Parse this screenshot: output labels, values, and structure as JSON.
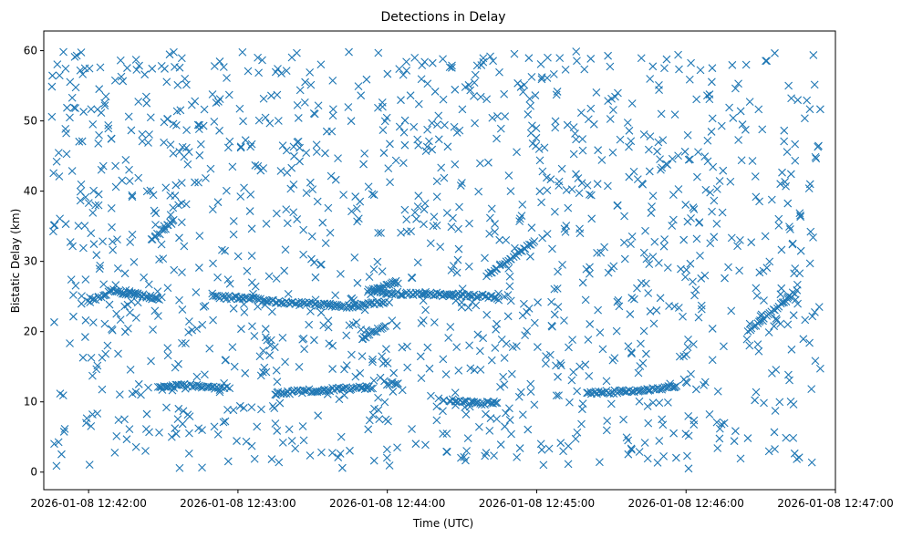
{
  "chart_data": {
    "type": "scatter",
    "title": "Detections in Delay",
    "xlabel": "Time (UTC)",
    "ylabel": "Bistatic Delay (km)",
    "xlim": [
      "2026-01-08 12:41:42",
      "2026-01-08 12:47:00"
    ],
    "ylim": [
      -2.5,
      62.8
    ],
    "xticks": [
      "2026-01-08 12:42:00",
      "2026-01-08 12:43:00",
      "2026-01-08 12:44:00",
      "2026-01-08 12:45:00",
      "2026-01-08 12:46:00",
      "2026-01-08 12:47:00"
    ],
    "yticks": [
      0,
      10,
      20,
      30,
      40,
      50,
      60
    ],
    "grid": false,
    "marker": "x",
    "color": "#1f77b4",
    "time_range": [
      "2026-01-08 12:41:45",
      "2026-01-08 12:46:54"
    ],
    "delay_range": [
      0.5,
      59.9
    ],
    "tracks": [
      {
        "points": [
          [
            "2026-01-08 12:42:00",
            24.3
          ],
          [
            "2026-01-08 12:42:10",
            25.8
          ],
          [
            "2026-01-08 12:42:20",
            25.2
          ],
          [
            "2026-01-08 12:42:30",
            24.6
          ]
        ]
      },
      {
        "points": [
          [
            "2026-01-08 12:42:50",
            25.0
          ],
          [
            "2026-01-08 12:43:00",
            24.8
          ],
          [
            "2026-01-08 12:43:10",
            24.5
          ],
          [
            "2026-01-08 12:43:20",
            24.1
          ],
          [
            "2026-01-08 12:43:30",
            23.9
          ],
          [
            "2026-01-08 12:43:45",
            23.6
          ],
          [
            "2026-01-08 12:44:00",
            24.2
          ]
        ]
      },
      {
        "points": [
          [
            "2026-01-08 12:43:55",
            25.6
          ],
          [
            "2026-01-08 12:44:10",
            25.4
          ],
          [
            "2026-01-08 12:44:30",
            25.2
          ],
          [
            "2026-01-08 12:44:45",
            24.9
          ]
        ]
      },
      {
        "points": [
          [
            "2026-01-08 12:43:52",
            25.9
          ],
          [
            "2026-01-08 12:43:58",
            26.4
          ],
          [
            "2026-01-08 12:44:05",
            27.1
          ]
        ]
      },
      {
        "points": [
          [
            "2026-01-08 12:42:28",
            12.1
          ],
          [
            "2026-01-08 12:42:40",
            12.3
          ],
          [
            "2026-01-08 12:42:50",
            12.1
          ],
          [
            "2026-01-08 12:42:55",
            11.8
          ]
        ]
      },
      {
        "points": [
          [
            "2026-01-08 12:43:15",
            11.2
          ],
          [
            "2026-01-08 12:43:30",
            11.6
          ],
          [
            "2026-01-08 12:43:45",
            11.9
          ],
          [
            "2026-01-08 12:43:55",
            12.1
          ]
        ]
      },
      {
        "points": [
          [
            "2026-01-08 12:44:00",
            12.4
          ],
          [
            "2026-01-08 12:44:05",
            12.8
          ]
        ]
      },
      {
        "points": [
          [
            "2026-01-08 12:44:25",
            10.2
          ],
          [
            "2026-01-08 12:44:35",
            9.8
          ],
          [
            "2026-01-08 12:44:45",
            9.9
          ]
        ]
      },
      {
        "points": [
          [
            "2026-01-08 12:45:20",
            11.2
          ],
          [
            "2026-01-08 12:45:35",
            11.5
          ],
          [
            "2026-01-08 12:45:50",
            11.9
          ],
          [
            "2026-01-08 12:45:57",
            12.2
          ]
        ]
      },
      {
        "points": [
          [
            "2026-01-08 12:43:50",
            19.0
          ],
          [
            "2026-01-08 12:44:00",
            21.0
          ]
        ]
      },
      {
        "points": [
          [
            "2026-01-08 12:44:40",
            28.0
          ],
          [
            "2026-01-08 12:44:52",
            31.0
          ],
          [
            "2026-01-08 12:45:00",
            33.0
          ]
        ]
      },
      {
        "points": [
          [
            "2026-01-08 12:46:25",
            20.0
          ],
          [
            "2026-01-08 12:46:35",
            23.0
          ],
          [
            "2026-01-08 12:46:45",
            26.0
          ]
        ]
      },
      {
        "points": [
          [
            "2026-01-08 12:42:25",
            33.0
          ],
          [
            "2026-01-08 12:42:35",
            36.0
          ]
        ]
      }
    ]
  }
}
